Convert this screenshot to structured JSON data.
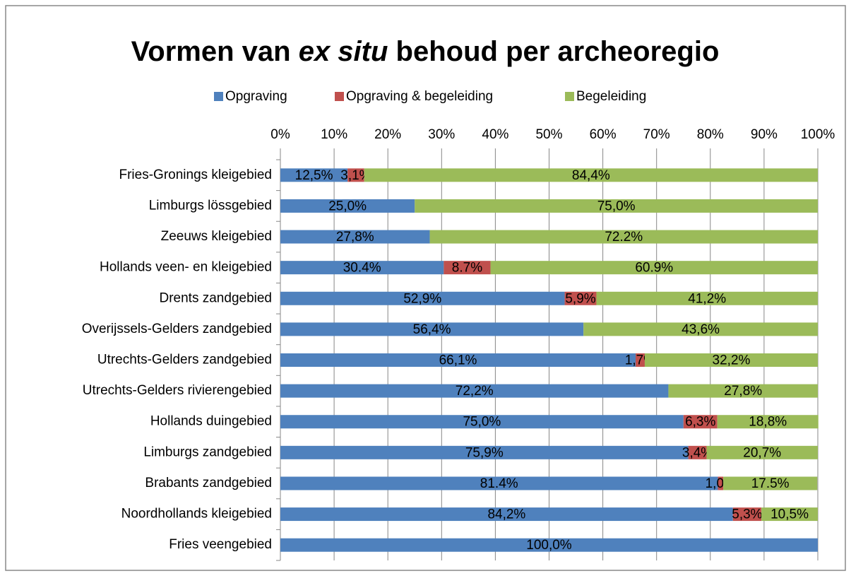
{
  "chart_data": {
    "type": "stacked_barh",
    "title": [
      "Vormen van ",
      "ex situ",
      " behoud per archeoregio"
    ],
    "categories": [
      "Fries-Gronings kleigebied",
      "Limburgs lössgebied",
      "Zeeuws kleigebied",
      "Hollands veen- en kleigebied",
      "Drents zandgebied",
      "Overijssels-Gelders zandgebied",
      "Utrechts-Gelders zandgebied",
      "Utrechts-Gelders rivierengebied",
      "Hollands duingebied",
      "Limburgs zandgebied",
      "Brabants zandgebied",
      "Noordhollands kleigebied",
      "Fries veengebied"
    ],
    "series": [
      {
        "name": "Opgraving",
        "color": "#4f81bd",
        "values": [
          12.5,
          25.0,
          27.8,
          30.4,
          52.9,
          56.4,
          66.1,
          72.2,
          75.0,
          75.9,
          81.4,
          84.2,
          100.0
        ],
        "value_labels": [
          "12,5%",
          "25,0%",
          "27,8%",
          "30.4%",
          "52,9%",
          "56,4%",
          "66,1%",
          "72,2%",
          "75,0%",
          "75,9%",
          "81.4%",
          "84,2%",
          "100,0%"
        ]
      },
      {
        "name": "Opgraving & begeleiding",
        "color": "#c0504d",
        "values": [
          3.1,
          null,
          null,
          8.7,
          5.9,
          null,
          1.7,
          null,
          6.3,
          3.4,
          1.0,
          5.3,
          null
        ],
        "value_labels": [
          "3,1%",
          null,
          null,
          "8.7%",
          "5,9%",
          null,
          "1,7%",
          null,
          "6,3%",
          "3,4%",
          "1,0%",
          "5,3%",
          null
        ]
      },
      {
        "name": "Begeleiding",
        "color": "#9bbb59",
        "values": [
          84.4,
          75.0,
          72.2,
          60.9,
          41.2,
          43.6,
          32.2,
          27.8,
          18.8,
          20.7,
          17.5,
          10.5,
          null
        ],
        "value_labels": [
          "84,4%",
          "75,0%",
          "72.2%",
          "60.9%",
          "41,2%",
          "43,6%",
          "32,2%",
          "27,8%",
          "18,8%",
          "20,7%",
          "17.5%",
          "10,5%",
          null
        ]
      }
    ],
    "xlim": [
      0,
      100
    ],
    "xticks": [
      {
        "value": 0,
        "label": "0%"
      },
      {
        "value": 10,
        "label": "10%"
      },
      {
        "value": 20,
        "label": "20%"
      },
      {
        "value": 30,
        "label": "30%"
      },
      {
        "value": 40,
        "label": "40%"
      },
      {
        "value": 50,
        "label": "50%"
      },
      {
        "value": 60,
        "label": "60%"
      },
      {
        "value": 70,
        "label": "70%"
      },
      {
        "value": 80,
        "label": "80%"
      },
      {
        "value": 90,
        "label": "90%"
      },
      {
        "value": 100,
        "label": "100%"
      }
    ],
    "grid": true,
    "legend": "top"
  }
}
